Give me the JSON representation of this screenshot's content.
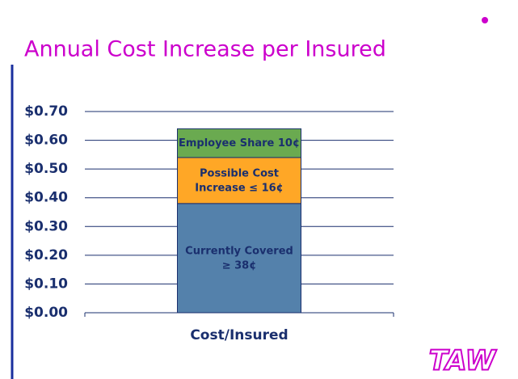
{
  "chart_data": {
    "type": "stacked-bar",
    "title": "Annual Cost Increase per Insured",
    "categories": [
      "Cost/Insured"
    ],
    "series": [
      {
        "color": "#5481ab",
        "values": [
          0.38
        ],
        "value_labels": [
          "Currently Covered\n≥ 38¢"
        ]
      },
      {
        "color": "#ffa726",
        "values": [
          0.16
        ],
        "value_labels": [
          "Possible Cost\nIncrease  ≤ 16¢"
        ]
      },
      {
        "color": "#6aaa50",
        "values": [
          0.1
        ],
        "value_labels": [
          "Employee Share 10¢"
        ]
      }
    ],
    "ylim": [
      0,
      0.7
    ],
    "yticks": [
      {
        "value": 0,
        "label": "$0.00"
      },
      {
        "value": 0.1,
        "label": "$0.10"
      },
      {
        "value": 0.2,
        "label": "$0.20"
      },
      {
        "value": 0.3,
        "label": "$0.30"
      },
      {
        "value": 0.4,
        "label": "$0.40"
      },
      {
        "value": 0.5,
        "label": "$0.50"
      },
      {
        "value": 0.6,
        "label": "$0.60"
      },
      {
        "value": 0.7,
        "label": "$0.70"
      }
    ],
    "grid": true
  },
  "logo": "TAW"
}
